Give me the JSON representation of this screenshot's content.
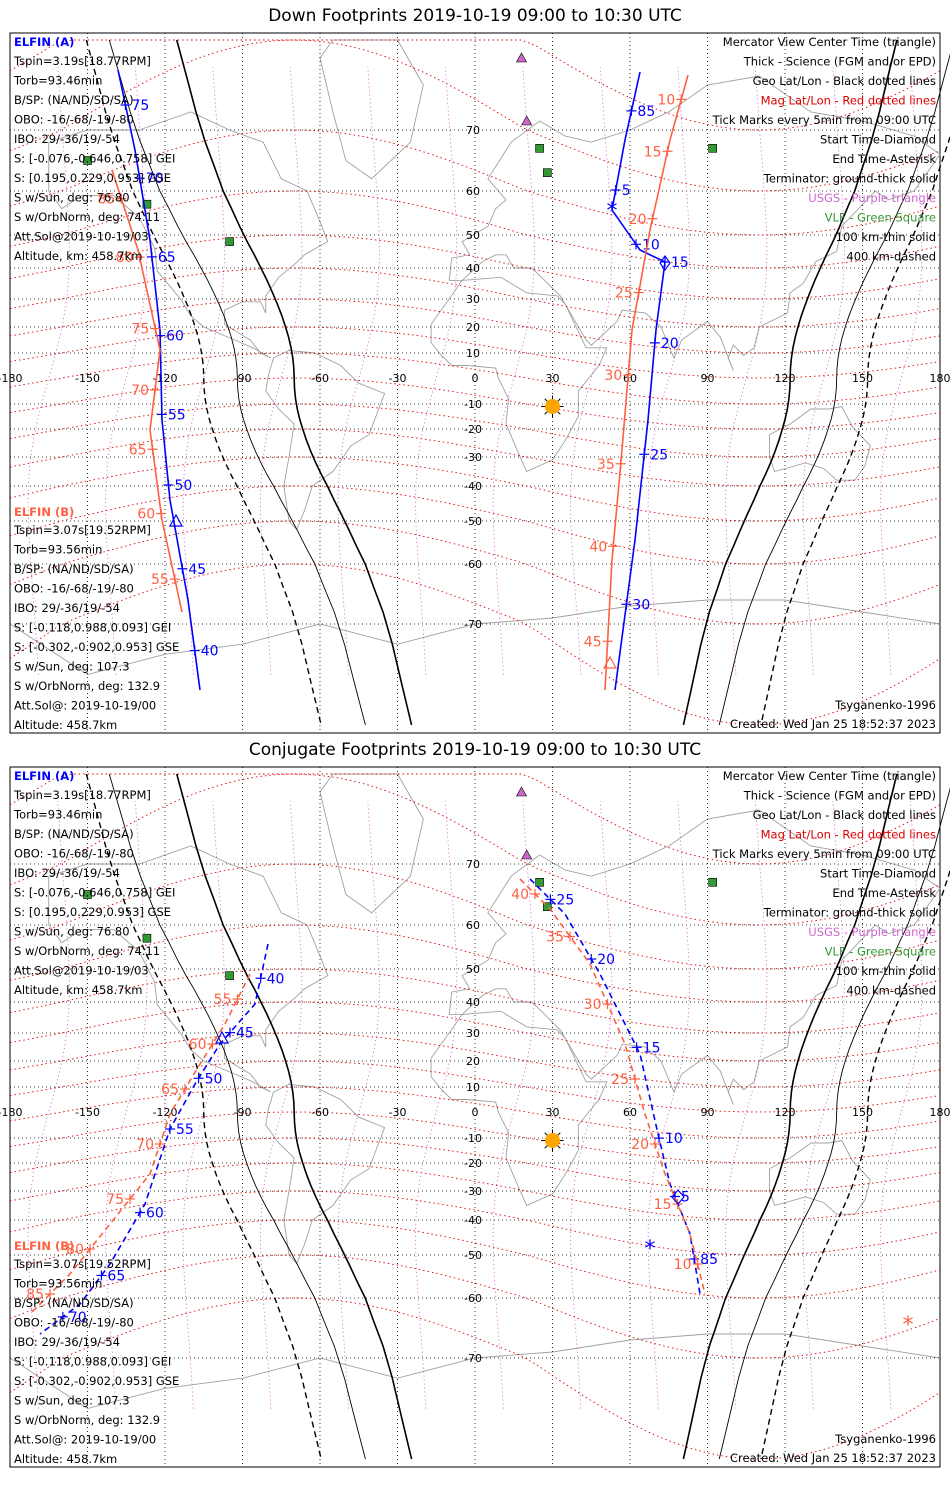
{
  "panels": [
    {
      "title": "Down Footprints 2019-10-19 09:00 to 10:30 UTC",
      "mode": "down"
    },
    {
      "title": "Conjugate Footprints 2019-10-19 09:00 to 10:30 UTC",
      "mode": "conjugate"
    }
  ],
  "colors": {
    "elfin_a": "#0000ff",
    "elfin_b": "#ff6040",
    "mag_grid": "#dd0000",
    "geo_grid": "#000000",
    "lshell": "#dd33dd",
    "usgs": "#cc66cc",
    "vlf": "#339933",
    "sun": "#ffa500",
    "coast": "#a0a0a0"
  },
  "elfin_a": {
    "title": "ELFIN (A)",
    "lines": [
      "Tspin=3.19s[18.77RPM]",
      "Torb=93.46min",
      "B/SP: (NA/ND/SD/SA)",
      "OBO: -16/-68/-19/-80",
      "IBO: 29/-36/19/-54",
      "S: [-0.076,-0.646,0.758] GEI",
      "S: [0.195,0.229,0.953] GSE",
      "S w/Sun, deg: 76.80",
      "S w/OrbNorm, deg: 74.11",
      "Att.Sol@2019-10-19/03",
      "Altitude, km: 458.7km"
    ]
  },
  "elfin_b": {
    "title": "ELFIN (B)",
    "lines": [
      "Tspin=3.07s[19.52RPM]",
      "Torb=93.56min",
      "B/SP: (NA/ND/SD/SA)",
      "OBO: -16/-68/-19/-80",
      "IBO: 29/-36/19/-54",
      "S: [-0.118,0.988,0.093] GEI",
      "S: [-0.302,-0.902,0.953] GSE",
      "S w/Sun, deg: 107.3",
      "S w/OrbNorm, deg: 132.9",
      "Att.Sol@: 2019-10-19/00",
      "Altitude: 458.7km"
    ]
  },
  "legend": [
    {
      "text": "Mercator View Center Time (triangle)",
      "color": "#000000"
    },
    {
      "text": "Thick - Science (FGM and/or EPD)",
      "color": "#000000"
    },
    {
      "text": "Geo Lat/Lon - Black dotted lines",
      "color": "#000000"
    },
    {
      "text": "Mag Lat/Lon - Red dotted lines",
      "color": "#dd0000"
    },
    {
      "text": "Tick Marks every 5min from 09:00 UTC",
      "color": "#000000"
    },
    {
      "text": "Start Time-Diamond",
      "color": "#000000"
    },
    {
      "text": "End Time-Asterisk",
      "color": "#000000"
    },
    {
      "text": "Terminator: ground-thick solid",
      "color": "#000000"
    },
    {
      "text": "USGS - Purple triangle",
      "color": "#cc66cc"
    },
    {
      "text": "VLF - Green Square",
      "color": "#339933"
    },
    {
      "text": "100 km-thin solid",
      "color": "#000000"
    },
    {
      "text": "400 km-dashed",
      "color": "#000000"
    }
  ],
  "model": "Tsyganenko-1996",
  "created": "Created: Wed Jan 25 18:52:37 2023",
  "axes": {
    "lon_ticks": [
      "-180",
      "-150",
      "-120",
      "-90",
      "-60",
      "-30",
      "0",
      "30",
      "60",
      "90",
      "120",
      "150",
      "180"
    ],
    "lat_ticks": [
      "70",
      "60",
      "50",
      "40",
      "30",
      "20",
      "10",
      "0",
      "-10",
      "-20",
      "-30",
      "-40",
      "-50",
      "-60",
      "-70"
    ]
  },
  "tracks": {
    "down": {
      "a_west": {
        "ticks": [
          "75",
          "70",
          "65",
          "60",
          "55",
          "50",
          "45",
          "40"
        ]
      },
      "b_west": {
        "ticks": [
          "85",
          "80",
          "75",
          "70",
          "65",
          "60",
          "55"
        ]
      },
      "a_east": {
        "ticks": [
          "85",
          "5",
          "10",
          "15",
          "20",
          "25",
          "30"
        ]
      },
      "b_east": {
        "ticks": [
          "10",
          "15",
          "20",
          "25",
          "30",
          "35",
          "40",
          "45"
        ]
      }
    },
    "conjugate": {
      "a_west": {
        "ticks": [
          "40",
          "45",
          "50",
          "55",
          "60",
          "65",
          "70"
        ]
      },
      "b_west": {
        "ticks": [
          "55",
          "60",
          "65",
          "70",
          "75",
          "80",
          "85"
        ]
      },
      "a_east": {
        "ticks": [
          "25",
          "20",
          "15",
          "10",
          "5",
          "85"
        ]
      },
      "b_east": {
        "ticks": [
          "40",
          "35",
          "30",
          "25",
          "20",
          "15",
          "10"
        ]
      }
    }
  }
}
